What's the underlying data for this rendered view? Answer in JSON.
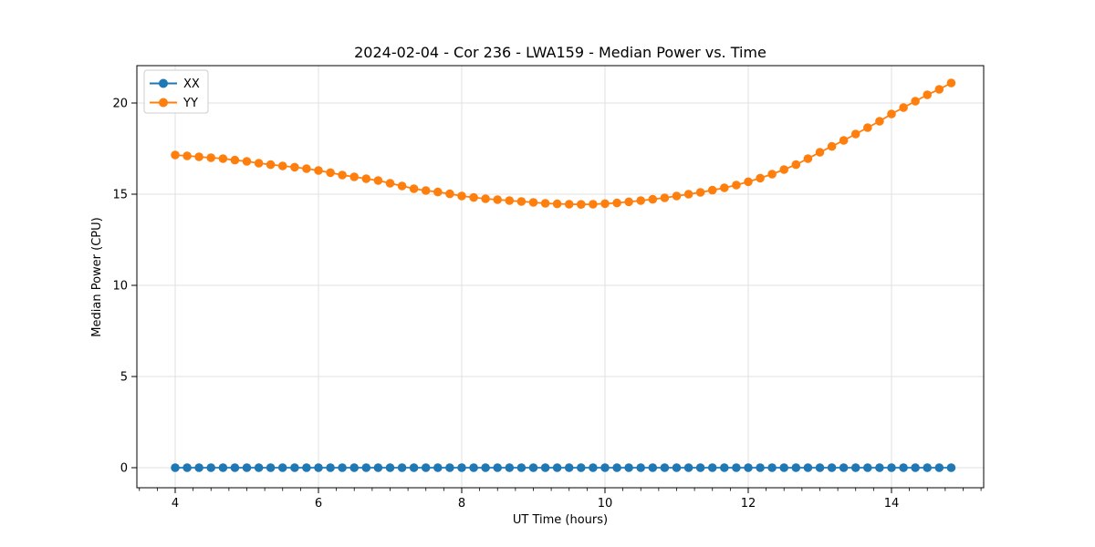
{
  "chart_data": {
    "type": "line",
    "title": "2024-02-04 - Cor 236 - LWA159 - Median Power vs. Time",
    "xlabel": "UT Time (hours)",
    "ylabel": "Median Power (CPU)",
    "x": [
      4.0,
      4.167,
      4.333,
      4.5,
      4.667,
      4.833,
      5.0,
      5.167,
      5.333,
      5.5,
      5.667,
      5.833,
      6.0,
      6.167,
      6.333,
      6.5,
      6.667,
      6.833,
      7.0,
      7.167,
      7.333,
      7.5,
      7.667,
      7.833,
      8.0,
      8.167,
      8.333,
      8.5,
      8.667,
      8.833,
      9.0,
      9.167,
      9.333,
      9.5,
      9.667,
      9.833,
      10.0,
      10.167,
      10.333,
      10.5,
      10.667,
      10.833,
      11.0,
      11.167,
      11.333,
      11.5,
      11.667,
      11.833,
      12.0,
      12.167,
      12.333,
      12.5,
      12.667,
      12.833,
      13.0,
      13.167,
      13.333,
      13.5,
      13.667,
      13.833,
      14.0,
      14.167,
      14.333,
      14.5,
      14.667,
      14.833
    ],
    "series": [
      {
        "name": "XX",
        "color": "#1f77b4",
        "values": [
          0,
          0,
          0,
          0,
          0,
          0,
          0,
          0,
          0,
          0,
          0,
          0,
          0,
          0,
          0,
          0,
          0,
          0,
          0,
          0,
          0,
          0,
          0,
          0,
          0,
          0,
          0,
          0,
          0,
          0,
          0,
          0,
          0,
          0,
          0,
          0,
          0,
          0,
          0,
          0,
          0,
          0,
          0,
          0,
          0,
          0,
          0,
          0,
          0,
          0,
          0,
          0,
          0,
          0,
          0,
          0,
          0,
          0,
          0,
          0,
          0,
          0,
          0,
          0,
          0,
          0
        ]
      },
      {
        "name": "YY",
        "color": "#ff7f0e",
        "values": [
          17.15,
          17.1,
          17.05,
          17.0,
          16.95,
          16.87,
          16.8,
          16.7,
          16.62,
          16.55,
          16.48,
          16.4,
          16.3,
          16.18,
          16.05,
          15.95,
          15.85,
          15.75,
          15.6,
          15.45,
          15.3,
          15.2,
          15.12,
          15.02,
          14.9,
          14.82,
          14.75,
          14.7,
          14.65,
          14.6,
          14.55,
          14.5,
          14.47,
          14.45,
          14.44,
          14.45,
          14.48,
          14.52,
          14.58,
          14.65,
          14.72,
          14.8,
          14.9,
          15.0,
          15.1,
          15.22,
          15.35,
          15.5,
          15.68,
          15.88,
          16.1,
          16.35,
          16.62,
          16.95,
          17.3,
          17.62,
          17.95,
          18.3,
          18.65,
          19.0,
          19.4,
          19.75,
          20.1,
          20.45,
          20.75,
          21.1
        ]
      }
    ],
    "xlim": [
      3.465,
      15.287
    ],
    "ylim": [
      -1.1,
      22.05
    ],
    "x_ticks": [
      4,
      6,
      8,
      10,
      12,
      14
    ],
    "x_minor_tick_step": 0.25,
    "y_ticks": [
      0,
      5,
      10,
      15,
      20
    ],
    "grid": true,
    "legend_position": "upper left",
    "colors": {
      "grid": "#e0e0e0",
      "spine": "#000000",
      "background": "#ffffff",
      "xx": "#1f77b4",
      "yy": "#ff7f0e"
    }
  }
}
